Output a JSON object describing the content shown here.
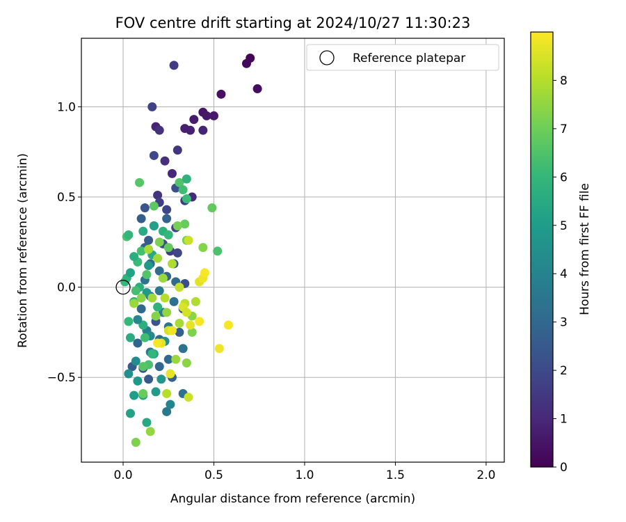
{
  "chart_data": {
    "type": "scatter",
    "title": "FOV centre drift starting at 2024/10/27 11:30:23",
    "xlabel": "Angular distance from reference (arcmin)",
    "ylabel": "Rotation from reference (arcmin)",
    "xlim": [
      -0.23,
      2.1
    ],
    "ylim": [
      -0.97,
      1.38
    ],
    "xticks": [
      0.0,
      0.5,
      1.0,
      1.5,
      2.0
    ],
    "xtick_labels": [
      "0.0",
      "0.5",
      "1.0",
      "1.5",
      "2.0"
    ],
    "yticks": [
      -0.5,
      0.0,
      0.5,
      1.0
    ],
    "ytick_labels": [
      "−0.5",
      "0.0",
      "0.5",
      "1.0"
    ],
    "grid": true,
    "legend": {
      "placement": "top-right",
      "entries": [
        {
          "label": "Reference platepar",
          "marker": "open-circle",
          "color": "#000000"
        }
      ]
    },
    "reference_point": {
      "x": 0.0,
      "y": 0.0
    },
    "colorbar": {
      "label": "Hours from first FF file",
      "range": [
        0,
        9
      ],
      "ticks": [
        0,
        1,
        2,
        3,
        4,
        5,
        6,
        7,
        8
      ],
      "tick_labels": [
        "0",
        "1",
        "2",
        "3",
        "4",
        "5",
        "6",
        "7",
        "8"
      ],
      "colormap": "viridis",
      "colors": [
        "#440154",
        "#482878",
        "#3e4989",
        "#31688e",
        "#26828e",
        "#1f9e89",
        "#35b779",
        "#6ece58",
        "#b5de2b",
        "#fde725"
      ]
    },
    "series": [
      {
        "points": [
          {
            "x": 0.7,
            "y": 1.27,
            "t": 0.1
          },
          {
            "x": 0.68,
            "y": 1.24,
            "t": 0.2
          },
          {
            "x": 0.74,
            "y": 1.1,
            "t": 0.3
          },
          {
            "x": 0.54,
            "y": 1.07,
            "t": 0.4
          },
          {
            "x": 0.44,
            "y": 0.97,
            "t": 0.5
          },
          {
            "x": 0.5,
            "y": 0.95,
            "t": 0.6
          },
          {
            "x": 0.46,
            "y": 0.95,
            "t": 0.6
          },
          {
            "x": 0.39,
            "y": 0.93,
            "t": 0.7
          },
          {
            "x": 0.34,
            "y": 0.88,
            "t": 0.8
          },
          {
            "x": 0.37,
            "y": 0.87,
            "t": 0.8
          },
          {
            "x": 0.44,
            "y": 0.87,
            "t": 0.9
          },
          {
            "x": 0.18,
            "y": 0.89,
            "t": 0.9
          },
          {
            "x": 0.2,
            "y": 0.87,
            "t": 1.3
          },
          {
            "x": 0.28,
            "y": 1.23,
            "t": 1.6
          },
          {
            "x": 0.16,
            "y": 1.0,
            "t": 1.8
          },
          {
            "x": 0.3,
            "y": 0.76,
            "t": 1.4
          },
          {
            "x": 0.17,
            "y": 0.73,
            "t": 2.0
          },
          {
            "x": 0.23,
            "y": 0.7,
            "t": 1.2
          },
          {
            "x": 0.27,
            "y": 0.63,
            "t": 1.0
          },
          {
            "x": 0.29,
            "y": 0.55,
            "t": 2.2
          },
          {
            "x": 0.38,
            "y": 0.5,
            "t": 1.1
          },
          {
            "x": 0.34,
            "y": 0.48,
            "t": 1.5
          },
          {
            "x": 0.19,
            "y": 0.51,
            "t": 1.3
          },
          {
            "x": 0.2,
            "y": 0.47,
            "t": 1.7
          },
          {
            "x": 0.24,
            "y": 0.43,
            "t": 1.9
          },
          {
            "x": 0.12,
            "y": 0.44,
            "t": 2.4
          },
          {
            "x": 0.1,
            "y": 0.38,
            "t": 2.6
          },
          {
            "x": 0.24,
            "y": 0.38,
            "t": 2.8
          },
          {
            "x": 0.17,
            "y": 0.34,
            "t": 2.3
          },
          {
            "x": 0.29,
            "y": 0.33,
            "t": 1.8
          },
          {
            "x": 0.14,
            "y": 0.26,
            "t": 2.5
          },
          {
            "x": 0.22,
            "y": 0.24,
            "t": 2.1
          },
          {
            "x": 0.12,
            "y": 0.22,
            "t": 2.7
          },
          {
            "x": 0.26,
            "y": 0.2,
            "t": 1.6
          },
          {
            "x": 0.3,
            "y": 0.19,
            "t": 1.9
          },
          {
            "x": 0.15,
            "y": 0.13,
            "t": 3.0
          },
          {
            "x": 0.28,
            "y": 0.13,
            "t": 2.5
          },
          {
            "x": 0.2,
            "y": 0.09,
            "t": 3.2
          },
          {
            "x": 0.24,
            "y": 0.06,
            "t": 2.9
          },
          {
            "x": 0.12,
            "y": 0.04,
            "t": 3.4
          },
          {
            "x": 0.29,
            "y": 0.03,
            "t": 3.1
          },
          {
            "x": 0.34,
            "y": 0.02,
            "t": 2.2
          },
          {
            "x": 0.2,
            "y": -0.02,
            "t": 3.6
          },
          {
            "x": 0.15,
            "y": -0.05,
            "t": 2.8
          },
          {
            "x": 0.28,
            "y": -0.08,
            "t": 3.3
          },
          {
            "x": 0.1,
            "y": -0.12,
            "t": 3.0
          },
          {
            "x": 0.33,
            "y": -0.12,
            "t": 2.6
          },
          {
            "x": 0.22,
            "y": -0.14,
            "t": 3.8
          },
          {
            "x": 0.18,
            "y": -0.19,
            "t": 2.4
          },
          {
            "x": 0.25,
            "y": -0.22,
            "t": 3.5
          },
          {
            "x": 0.13,
            "y": -0.24,
            "t": 3.9
          },
          {
            "x": 0.31,
            "y": -0.25,
            "t": 2.7
          },
          {
            "x": 0.2,
            "y": -0.29,
            "t": 3.2
          },
          {
            "x": 0.08,
            "y": -0.31,
            "t": 2.9
          },
          {
            "x": 0.33,
            "y": -0.34,
            "t": 3.4
          },
          {
            "x": 0.15,
            "y": -0.36,
            "t": 3.7
          },
          {
            "x": 0.25,
            "y": -0.4,
            "t": 3.1
          },
          {
            "x": 0.11,
            "y": -0.45,
            "t": 2.3
          },
          {
            "x": 0.2,
            "y": -0.44,
            "t": 3.0
          },
          {
            "x": 0.05,
            "y": -0.44,
            "t": 2.6
          },
          {
            "x": 0.14,
            "y": -0.51,
            "t": 2.5
          },
          {
            "x": 0.27,
            "y": -0.5,
            "t": 2.8
          },
          {
            "x": 0.33,
            "y": -0.59,
            "t": 3.3
          },
          {
            "x": 0.24,
            "y": -0.69,
            "t": 3.6
          },
          {
            "x": 0.26,
            "y": -0.65,
            "t": 4.1
          },
          {
            "x": 0.03,
            "y": -0.48,
            "t": 4.5
          },
          {
            "x": 0.08,
            "y": -0.52,
            "t": 4.8
          },
          {
            "x": 0.06,
            "y": -0.6,
            "t": 5.0
          },
          {
            "x": 0.11,
            "y": -0.6,
            "t": 5.3
          },
          {
            "x": 0.04,
            "y": -0.7,
            "t": 5.2
          },
          {
            "x": 0.13,
            "y": -0.75,
            "t": 5.4
          },
          {
            "x": 0.21,
            "y": -0.51,
            "t": 4.7
          },
          {
            "x": 0.18,
            "y": -0.58,
            "t": 4.9
          },
          {
            "x": 0.07,
            "y": -0.41,
            "t": 4.4
          },
          {
            "x": 0.17,
            "y": -0.37,
            "t": 5.1
          },
          {
            "x": 0.23,
            "y": -0.3,
            "t": 4.6
          },
          {
            "x": 0.04,
            "y": -0.28,
            "t": 5.5
          },
          {
            "x": 0.11,
            "y": -0.21,
            "t": 5.7
          },
          {
            "x": 0.15,
            "y": -0.27,
            "t": 4.3
          },
          {
            "x": 0.08,
            "y": -0.18,
            "t": 4.2
          },
          {
            "x": 0.19,
            "y": -0.11,
            "t": 5.8
          },
          {
            "x": 0.06,
            "y": -0.08,
            "t": 5.9
          },
          {
            "x": 0.13,
            "y": -0.03,
            "t": 4.9
          },
          {
            "x": 0.09,
            "y": 0.0,
            "t": 5.6
          },
          {
            "x": 0.01,
            "y": 0.03,
            "t": 6.0
          },
          {
            "x": 0.02,
            "y": 0.05,
            "t": 5.8
          },
          {
            "x": 0.04,
            "y": 0.08,
            "t": 5.2
          },
          {
            "x": 0.08,
            "y": 0.14,
            "t": 6.1
          },
          {
            "x": 0.06,
            "y": 0.17,
            "t": 5.6
          },
          {
            "x": 0.14,
            "y": 0.12,
            "t": 4.8
          },
          {
            "x": 0.1,
            "y": 0.2,
            "t": 6.3
          },
          {
            "x": 0.16,
            "y": 0.18,
            "t": 5.4
          },
          {
            "x": 0.11,
            "y": 0.31,
            "t": 5.5
          },
          {
            "x": 0.02,
            "y": 0.28,
            "t": 6.4
          },
          {
            "x": 0.03,
            "y": 0.29,
            "t": 5.9
          },
          {
            "x": 0.17,
            "y": 0.34,
            "t": 5.1
          },
          {
            "x": 0.22,
            "y": 0.31,
            "t": 5.7
          },
          {
            "x": 0.25,
            "y": 0.29,
            "t": 6.0
          },
          {
            "x": 0.09,
            "y": 0.58,
            "t": 6.6
          },
          {
            "x": 0.31,
            "y": 0.58,
            "t": 6.5
          },
          {
            "x": 0.35,
            "y": 0.6,
            "t": 5.8
          },
          {
            "x": 0.33,
            "y": 0.54,
            "t": 6.2
          },
          {
            "x": 0.35,
            "y": 0.49,
            "t": 6.1
          },
          {
            "x": 0.17,
            "y": 0.45,
            "t": 6.7
          },
          {
            "x": 0.25,
            "y": 0.22,
            "t": 6.8
          },
          {
            "x": 0.34,
            "y": 0.35,
            "t": 6.9
          },
          {
            "x": 0.3,
            "y": 0.34,
            "t": 7.1
          },
          {
            "x": 0.49,
            "y": 0.44,
            "t": 6.8
          },
          {
            "x": 0.52,
            "y": 0.2,
            "t": 6.4
          },
          {
            "x": 0.44,
            "y": 0.22,
            "t": 7.3
          },
          {
            "x": 0.35,
            "y": 0.26,
            "t": 7.0
          },
          {
            "x": 0.13,
            "y": 0.07,
            "t": 6.5
          },
          {
            "x": 0.07,
            "y": -0.02,
            "t": 6.3
          },
          {
            "x": 0.12,
            "y": -0.28,
            "t": 6.2
          },
          {
            "x": 0.03,
            "y": -0.19,
            "t": 6.0
          },
          {
            "x": 0.14,
            "y": -0.43,
            "t": 6.4
          },
          {
            "x": 0.11,
            "y": -0.44,
            "t": 6.6
          },
          {
            "x": 0.16,
            "y": -0.37,
            "t": 5.9
          },
          {
            "x": 0.11,
            "y": -0.59,
            "t": 6.9
          },
          {
            "x": 0.07,
            "y": -0.86,
            "t": 7.2
          },
          {
            "x": 0.15,
            "y": -0.8,
            "t": 7.5
          },
          {
            "x": 0.1,
            "y": -0.06,
            "t": 7.4
          },
          {
            "x": 0.06,
            "y": -0.09,
            "t": 7.6
          },
          {
            "x": 0.19,
            "y": 0.16,
            "t": 7.7
          },
          {
            "x": 0.14,
            "y": 0.21,
            "t": 7.8
          },
          {
            "x": 0.2,
            "y": 0.25,
            "t": 7.2
          },
          {
            "x": 0.27,
            "y": 0.13,
            "t": 7.9
          },
          {
            "x": 0.22,
            "y": 0.05,
            "t": 7.6
          },
          {
            "x": 0.16,
            "y": -0.06,
            "t": 7.7
          },
          {
            "x": 0.23,
            "y": -0.06,
            "t": 8.0
          },
          {
            "x": 0.18,
            "y": -0.16,
            "t": 7.3
          },
          {
            "x": 0.24,
            "y": -0.14,
            "t": 7.5
          },
          {
            "x": 0.31,
            "y": -0.2,
            "t": 7.8
          },
          {
            "x": 0.38,
            "y": -0.16,
            "t": 7.4
          },
          {
            "x": 0.34,
            "y": -0.09,
            "t": 8.1
          },
          {
            "x": 0.4,
            "y": -0.08,
            "t": 7.9
          },
          {
            "x": 0.38,
            "y": -0.25,
            "t": 7.2
          },
          {
            "x": 0.29,
            "y": -0.4,
            "t": 7.6
          },
          {
            "x": 0.35,
            "y": -0.42,
            "t": 7.4
          },
          {
            "x": 0.24,
            "y": -0.59,
            "t": 8.0
          },
          {
            "x": 0.36,
            "y": -0.61,
            "t": 8.3
          },
          {
            "x": 0.25,
            "y": -0.24,
            "t": 8.4
          },
          {
            "x": 0.33,
            "y": -0.11,
            "t": 8.5
          },
          {
            "x": 0.31,
            "y": 0.0,
            "t": 8.2
          },
          {
            "x": 0.36,
            "y": 0.26,
            "t": 8.3
          },
          {
            "x": 0.42,
            "y": 0.03,
            "t": 8.6
          },
          {
            "x": 0.44,
            "y": 0.05,
            "t": 8.8
          },
          {
            "x": 0.45,
            "y": 0.08,
            "t": 8.9
          },
          {
            "x": 0.37,
            "y": -0.21,
            "t": 8.7
          },
          {
            "x": 0.42,
            "y": -0.19,
            "t": 8.9
          },
          {
            "x": 0.58,
            "y": -0.21,
            "t": 8.9
          },
          {
            "x": 0.53,
            "y": -0.34,
            "t": 8.8
          },
          {
            "x": 0.21,
            "y": -0.31,
            "t": 8.6
          },
          {
            "x": 0.19,
            "y": -0.31,
            "t": 8.9
          },
          {
            "x": 0.26,
            "y": -0.48,
            "t": 8.7
          },
          {
            "x": 0.27,
            "y": -0.24,
            "t": 8.8
          },
          {
            "x": 0.35,
            "y": -0.14,
            "t": 8.4
          }
        ]
      }
    ]
  }
}
